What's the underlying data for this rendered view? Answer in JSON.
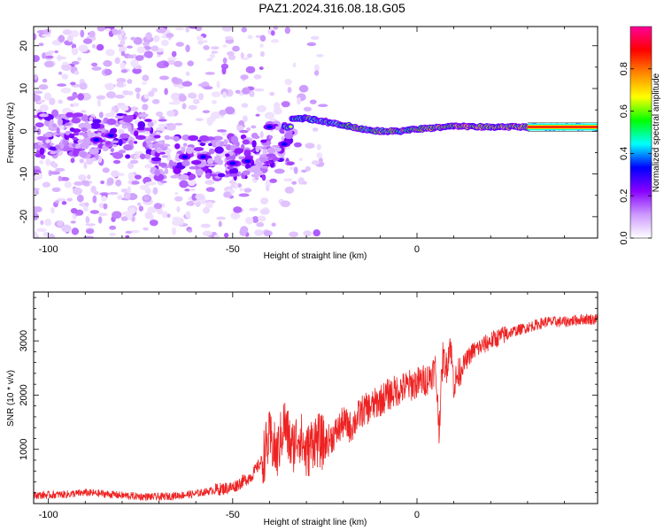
{
  "title": "PAZ1.2024.316.08.18.G05",
  "chart_data": [
    {
      "type": "heatmap",
      "xlabel": "Height of straight line (km)",
      "ylabel": "Frequency (Hz)",
      "xlim": [
        -104,
        49
      ],
      "ylim": [
        -25,
        24.5
      ],
      "xticks": [
        -100,
        -50,
        0
      ],
      "yticks": [
        -20,
        -10,
        0,
        10,
        20
      ],
      "colorbar": {
        "label": "Normalized spectral amplitude",
        "range": [
          0,
          1
        ],
        "ticks": [
          "0.0",
          "0.2",
          "0.4",
          "0.6",
          "0.8"
        ],
        "tick_values": [
          0,
          0.2,
          0.4,
          0.6,
          0.8
        ],
        "colormap": [
          "#ffffff",
          "#cc99ff",
          "#8800ff",
          "#0000ff",
          "#00ffff",
          "#00ff00",
          "#ffff00",
          "#ff8800",
          "#ff0000",
          "#ff0099"
        ]
      },
      "ridge": [
        {
          "x": -34,
          "f": 3
        },
        {
          "x": -30,
          "f": 3
        },
        {
          "x": -25,
          "f": 2.2
        },
        {
          "x": -20,
          "f": 1.5
        },
        {
          "x": -15,
          "f": 0.5
        },
        {
          "x": -10,
          "f": 0
        },
        {
          "x": -5,
          "f": 0
        },
        {
          "x": 0,
          "f": 0.5
        },
        {
          "x": 5,
          "f": 0.8
        },
        {
          "x": 10,
          "f": 1.2
        },
        {
          "x": 20,
          "f": 1
        },
        {
          "x": 30,
          "f": 1
        },
        {
          "x": 49,
          "f": 1
        }
      ]
    },
    {
      "type": "line",
      "xlabel": "Height of straight line (km)",
      "ylabel": "SNR (10 * v/v)",
      "xlim": [
        -104,
        49
      ],
      "ylim": [
        0,
        3900
      ],
      "xticks": [
        -100,
        -50,
        0
      ],
      "yticks": [
        1000,
        2000,
        3000
      ],
      "color": "#ee2222",
      "series": [
        {
          "x": [
            -104,
            -95,
            -90,
            -85,
            -80,
            -75,
            -70,
            -65,
            -60,
            -55,
            -50,
            -45,
            -42,
            -40,
            -38,
            -36,
            -34,
            -32,
            -30,
            -28,
            -25,
            -22,
            -20,
            -18,
            -15,
            -12,
            -10,
            -8,
            -5,
            -3,
            -1,
            1,
            3,
            5,
            6,
            7,
            8,
            9,
            10,
            12,
            15,
            20,
            25,
            30,
            35,
            40,
            45,
            49
          ],
          "y": [
            150,
            170,
            200,
            180,
            150,
            130,
            120,
            150,
            180,
            250,
            300,
            500,
            800,
            1200,
            900,
            1500,
            1000,
            1300,
            900,
            1200,
            1100,
            1300,
            1500,
            1400,
            1700,
            1800,
            1900,
            2000,
            2100,
            2150,
            2200,
            2250,
            2300,
            2500,
            1400,
            2700,
            2500,
            3000,
            2200,
            2500,
            2800,
            3000,
            3150,
            3250,
            3350,
            3350,
            3400,
            3400
          ]
        }
      ]
    }
  ]
}
